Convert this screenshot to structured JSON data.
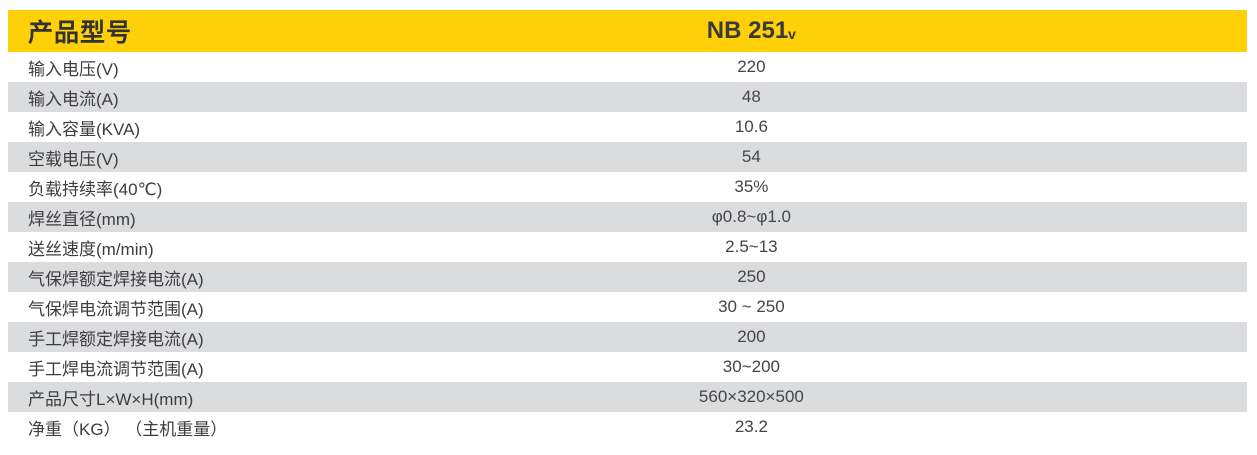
{
  "colors": {
    "header_bg": "#fdd008",
    "alt_row_bg": "#dbdcdd",
    "row_bg": "#ffffff",
    "text": "#3d3d3f",
    "header_text": "#323232"
  },
  "table": {
    "header": {
      "label": "产品型号",
      "model_main": "NB 251",
      "model_sub": "v"
    },
    "rows": [
      {
        "label": "输入电压(V)",
        "value": "220"
      },
      {
        "label": "输入电流(A)",
        "value": "48"
      },
      {
        "label": "输入容量(KVA)",
        "value": "10.6"
      },
      {
        "label": "空载电压(V)",
        "value": "54"
      },
      {
        "label": "负载持续率(40℃)",
        "value": "35%"
      },
      {
        "label": "焊丝直径(mm)",
        "value": "φ0.8~φ1.0"
      },
      {
        "label": "送丝速度(m/min)",
        "value": "2.5~13"
      },
      {
        "label": "气保焊额定焊接电流(A)",
        "value": "250"
      },
      {
        "label": "气保焊电流调节范围(A)",
        "value": "30 ~ 250"
      },
      {
        "label": "手工焊额定焊接电流(A)",
        "value": "200"
      },
      {
        "label": "手工焊电流调节范围(A)",
        "value": "30~200"
      },
      {
        "label": "产品尺寸L×W×H(mm)",
        "value": "560×320×500"
      },
      {
        "label": "净重（KG） （主机重量）",
        "value": "23.2"
      }
    ]
  }
}
